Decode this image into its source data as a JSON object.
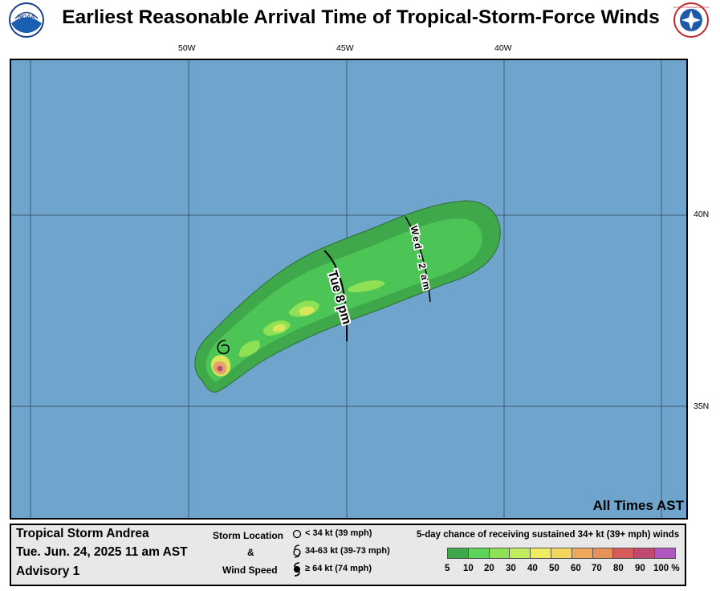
{
  "header": {
    "title": "Earliest Reasonable Arrival Time of Tropical-Storm-Force Winds",
    "noaa_logo_text": "NOAA",
    "nws_logo_text": "NATIONAL WEATHER SERVICE"
  },
  "map": {
    "longitude_labels": [
      "50W",
      "45W",
      "40W"
    ],
    "latitude_labels": [
      "40N",
      "35N"
    ],
    "time_labels": [
      "Tue 8 pm",
      "Wed - 2 am"
    ],
    "colors": {
      "ocean": "#6fa5cc",
      "grid": "#3d5a73",
      "p5": "#3fa84a",
      "p10": "#4cc456",
      "p20": "#8ee055",
      "p30": "#d8e65a",
      "p40": "#f0e066"
    }
  },
  "times_note": "All Times AST",
  "storm": {
    "name": "Tropical Storm Andrea",
    "datetime": "Tue. Jun. 24, 2025  11 am AST",
    "advisory": "Advisory 1"
  },
  "key": {
    "heading_top": "Storm Location",
    "heading_mid": "&",
    "heading_bottom": "Wind Speed",
    "rows": [
      "< 34 kt (39 mph)",
      "34-63 kt (39-73 mph)",
      "≥ 64 kt (74 mph)"
    ]
  },
  "scale": {
    "title": "5-day chance of receiving sustained 34+ kt (39+ mph) winds",
    "labels": [
      "5",
      "10",
      "20",
      "30",
      "40",
      "50",
      "60",
      "70",
      "80",
      "90",
      "100 %"
    ],
    "colors": [
      "#3fa84a",
      "#5cd45c",
      "#8ee055",
      "#c0ec5e",
      "#f0ec60",
      "#f2d65e",
      "#eea85c",
      "#e8905a",
      "#d85a5a",
      "#c04a6e",
      "#b056c0"
    ]
  }
}
